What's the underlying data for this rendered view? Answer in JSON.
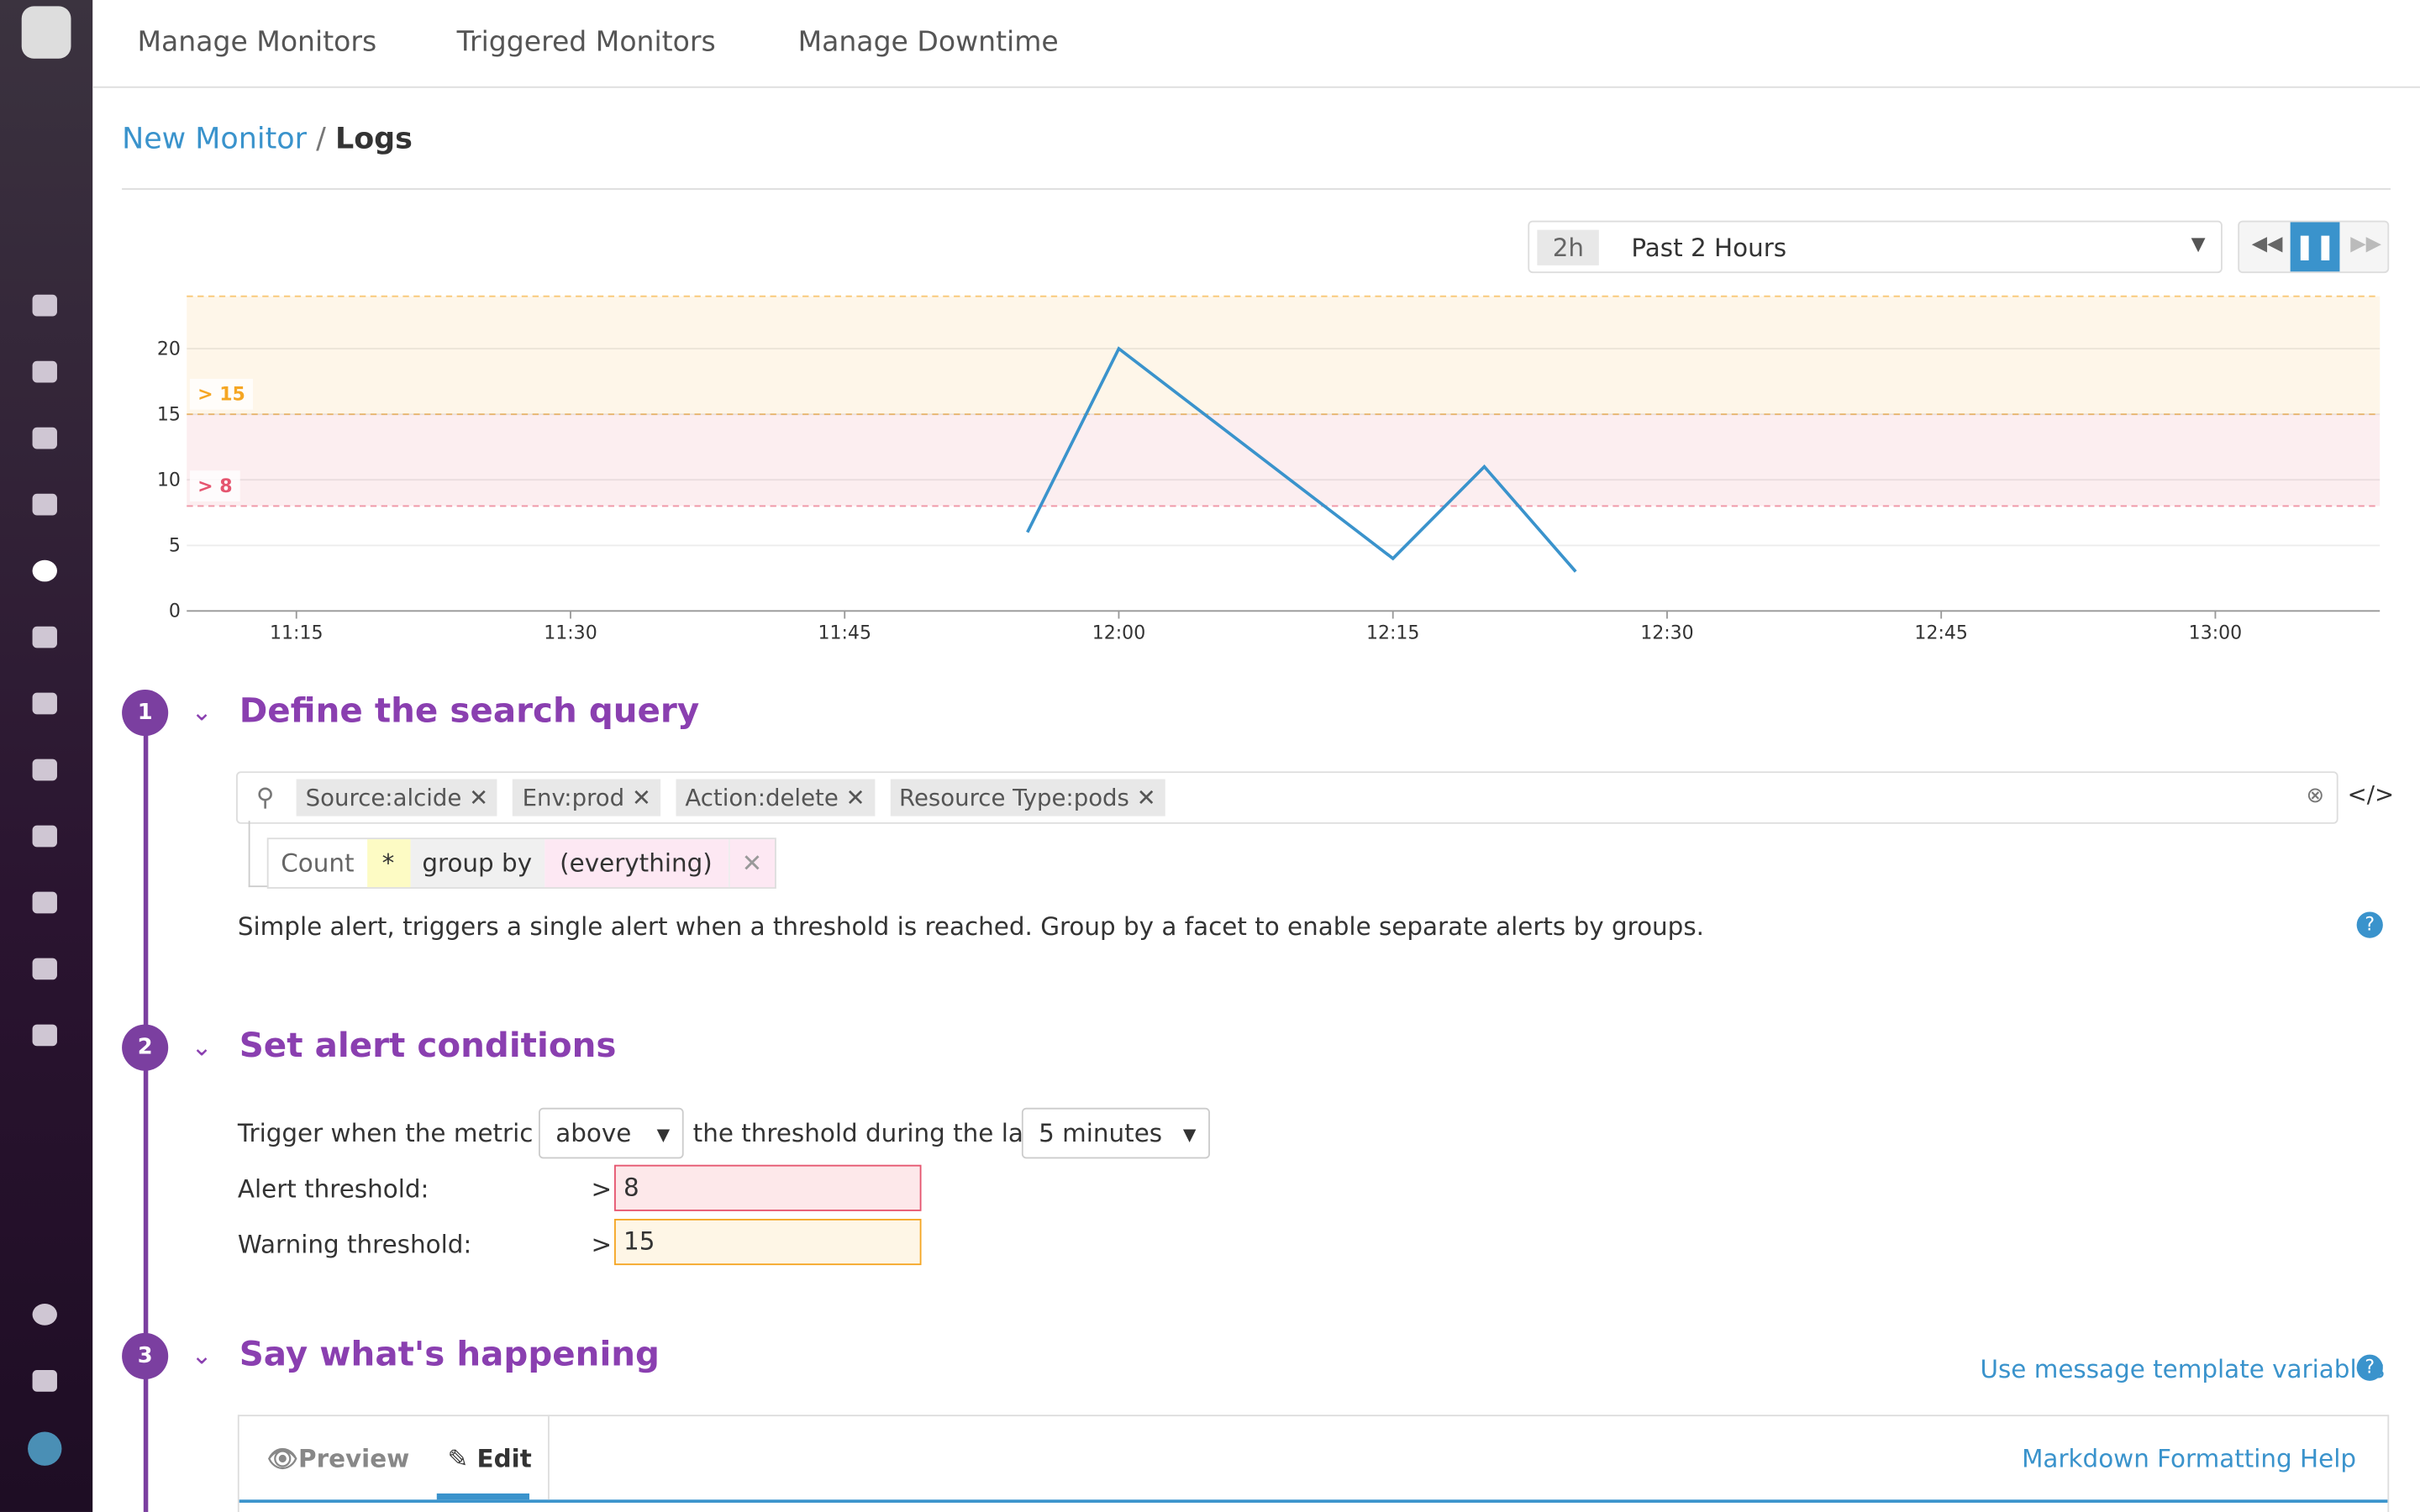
{
  "nav": {
    "tabs": [
      "Manage Monitors",
      "Triggered Monitors",
      "Manage Downtime"
    ]
  },
  "breadcrumb": {
    "parent": "New Monitor",
    "separator": "/",
    "current": "Logs"
  },
  "time_picker": {
    "badge": "2h",
    "label": "Past 2 Hours"
  },
  "chart_data": {
    "type": "line",
    "x": [
      "11:55",
      "12:00",
      "12:15",
      "12:20",
      "12:25"
    ],
    "values": [
      6,
      20,
      4,
      11,
      3
    ],
    "color": "#3a93cc",
    "xlim": [
      "11:09",
      "13:09"
    ],
    "xticks": [
      "11:15",
      "11:30",
      "11:45",
      "12:00",
      "12:15",
      "12:30",
      "12:45",
      "13:00"
    ],
    "ylim": [
      0,
      24
    ],
    "yticks": [
      0,
      5,
      10,
      15,
      20
    ],
    "grid": true,
    "thresholds": [
      {
        "value": 15,
        "label": "> 15",
        "color": "#f5a623"
      },
      {
        "value": 8,
        "label": "> 8",
        "color": "#e5556f"
      }
    ]
  },
  "sections": [
    {
      "number": "1",
      "title": "Define the search query",
      "filters": [
        "Source:alcide",
        "Env:prod",
        "Action:delete",
        "Resource Type:pods"
      ],
      "code_toggle": "</>",
      "query": {
        "measure": "Count",
        "field": "*",
        "group_label": "group by",
        "group": "(everything)"
      },
      "description": "Simple alert, triggers a single alert when a threshold is reached. Group by a facet to enable separate alerts by groups."
    },
    {
      "number": "2",
      "title": "Set alert conditions",
      "trigger_prefix": "Trigger when the metric is",
      "comparator": "above",
      "trigger_middle": "the threshold during the last",
      "window": "5 minutes",
      "alert_label": "Alert threshold:",
      "alert_op": ">",
      "alert_value": "8",
      "warning_label": "Warning threshold:",
      "warning_op": ">",
      "warning_value": "15"
    },
    {
      "number": "3",
      "title": "Say what's happening",
      "link": "Use message template variables",
      "tabs": [
        "Preview",
        "Edit"
      ],
      "help": "Markdown Formatting Help"
    }
  ]
}
